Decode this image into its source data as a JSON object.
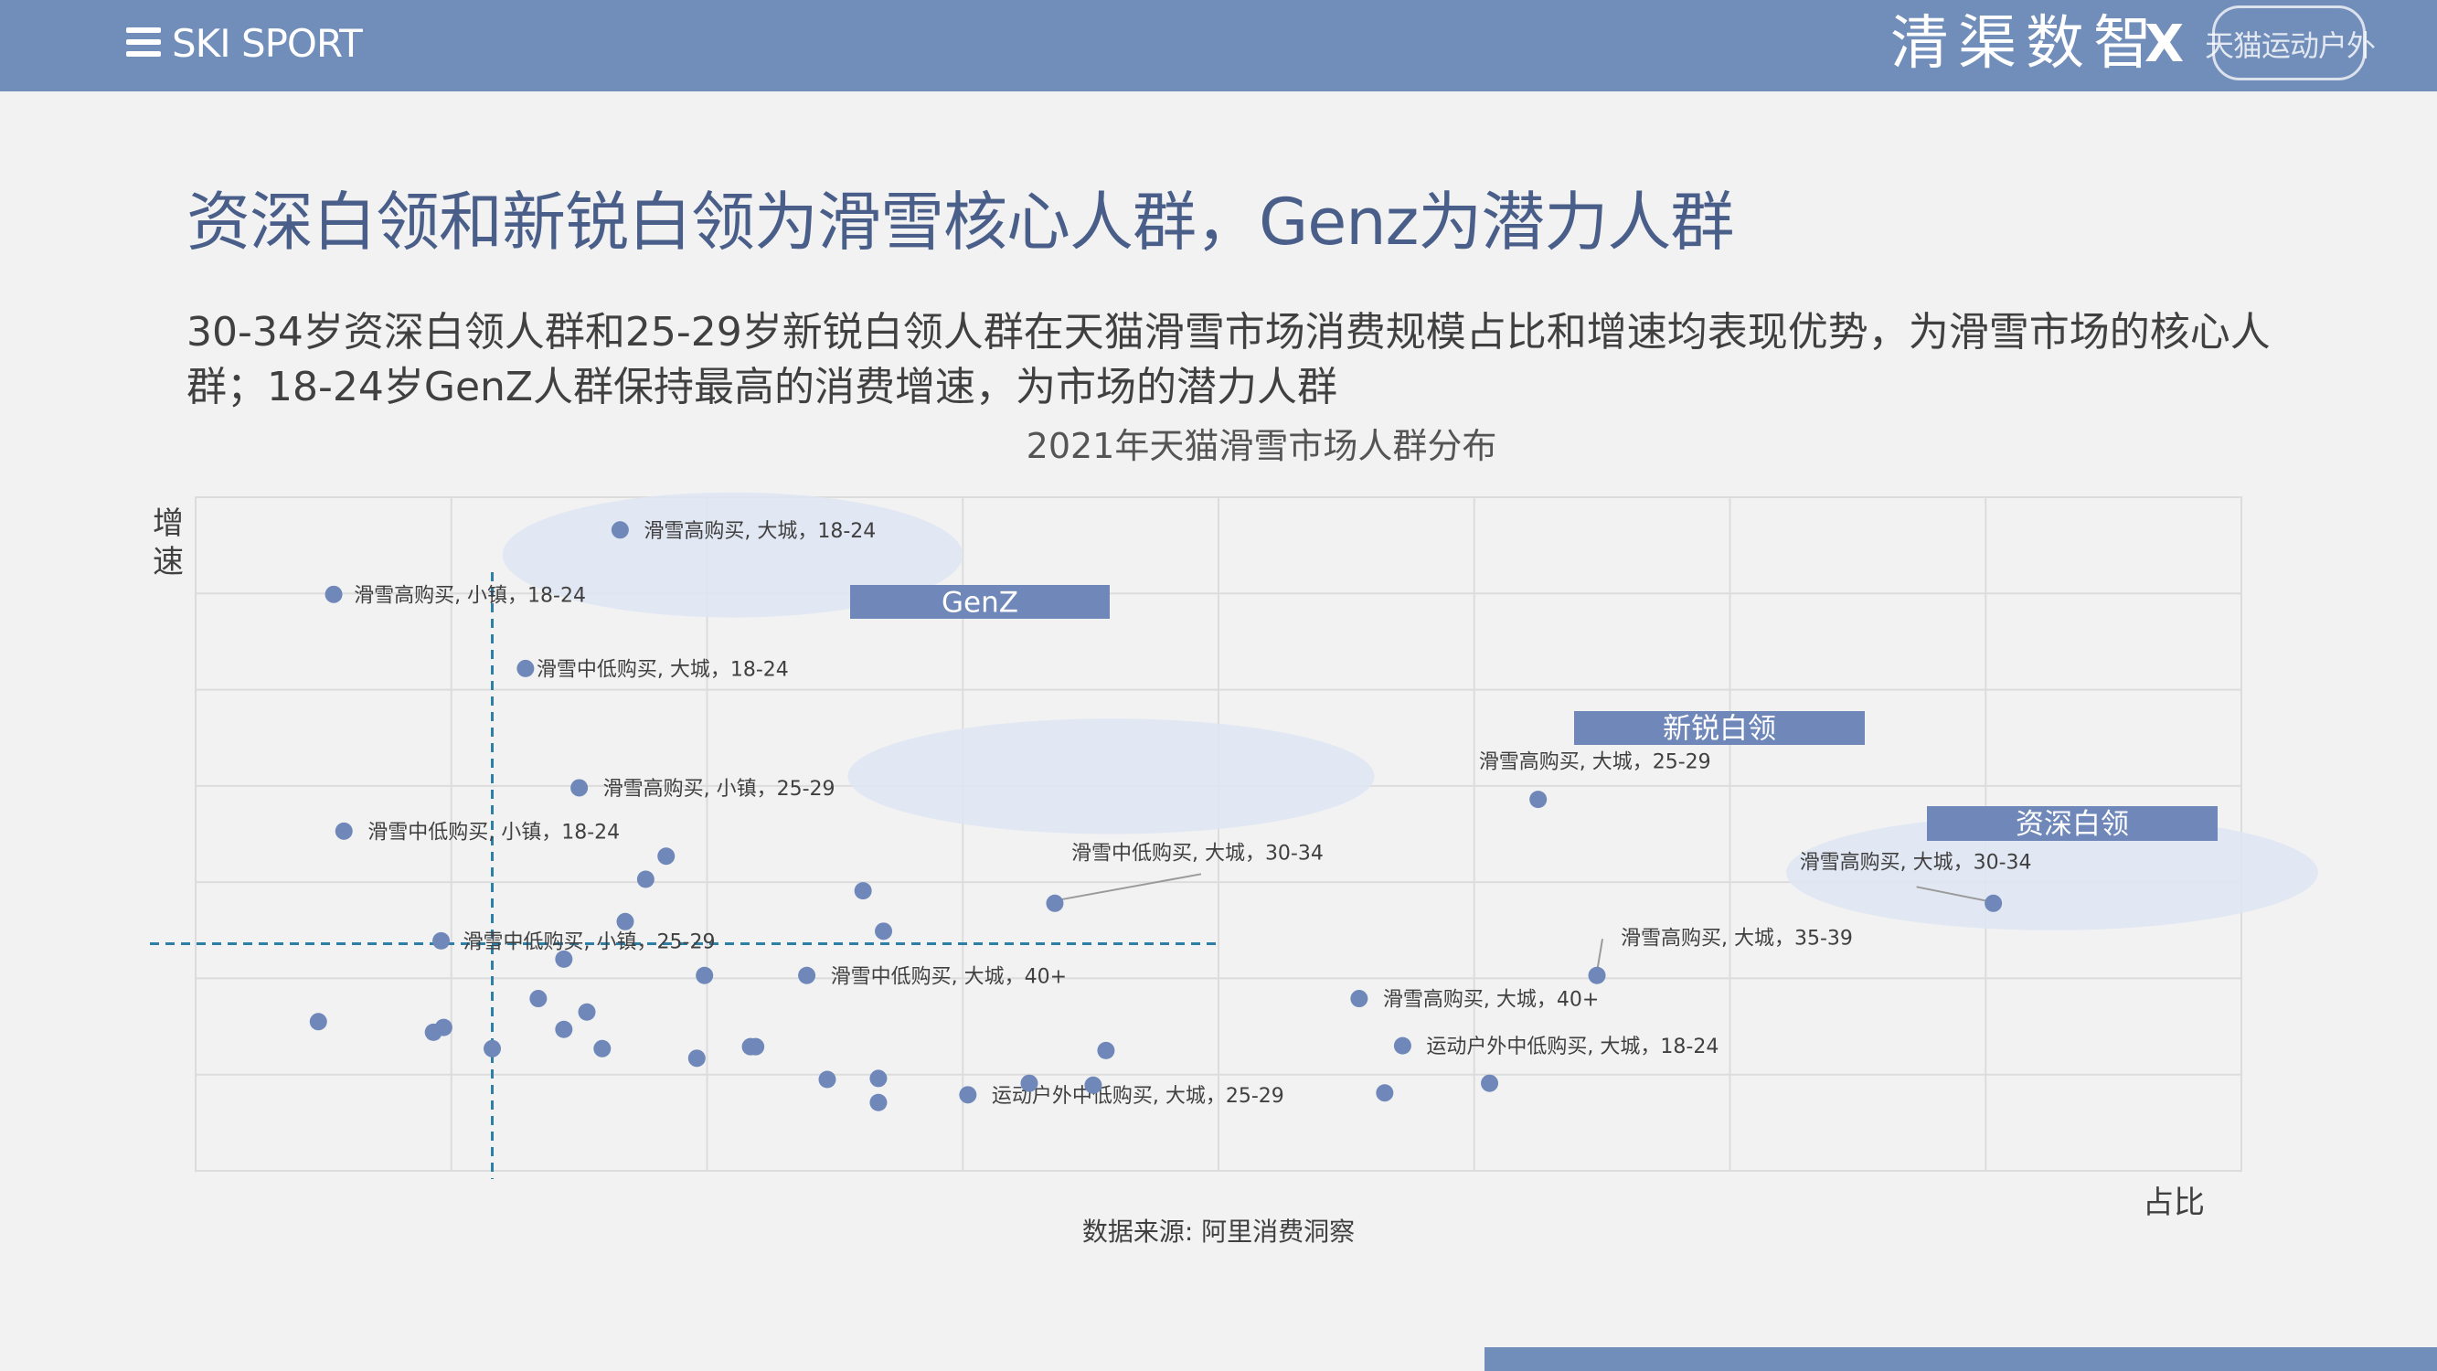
{
  "header": {
    "brand": "SKI SPORT",
    "partner_a": "清渠数智",
    "partner_x": "X",
    "partner_b": "天猫运动户外"
  },
  "page_title": "资深白领和新锐白领为滑雪核心人群，Genz为潜力人群",
  "subtitle": "30-34岁资深白领人群和25-29岁新锐白领人群在天猫滑雪市场消费规模占比和增速均表现优势，为滑雪市场的核心人群；18-24岁GenZ人群保持最高的消费增速，为市场的潜力人群",
  "source": "数据来源: 阿里消费洞察",
  "colors": {
    "header": "#718db9",
    "point": "#6f88b9",
    "box": "#6f88b9",
    "highlight": "#dfe6f3",
    "dashed": "#2e7fa8",
    "grid": "#dcdcdc"
  },
  "chart_data": {
    "type": "scatter",
    "title": "2021年天猫滑雪市场人群分布",
    "xlabel": "占比",
    "ylabel": "增速",
    "xlim": [
      0,
      8
    ],
    "ylim": [
      0,
      7
    ],
    "grid": true,
    "reference_lines": {
      "x": 1.16,
      "y": 2.36
    },
    "clusters": [
      {
        "name": "GenZ",
        "center": [
          2.1,
          6.4
        ],
        "radius": [
          0.9,
          0.65
        ]
      },
      {
        "name": "新锐白领",
        "center": [
          3.58,
          4.1
        ],
        "radius": [
          1.03,
          0.6
        ]
      },
      {
        "name": "资深白领",
        "center": [
          7.26,
          3.1
        ],
        "radius": [
          1.04,
          0.6
        ]
      }
    ],
    "points": [
      {
        "x": 1.66,
        "y": 6.66,
        "label": "滑雪高购买, 大城，18-24"
      },
      {
        "x": 0.54,
        "y": 5.99,
        "label": "滑雪高购买, 小镇，18-24"
      },
      {
        "x": 1.29,
        "y": 5.22,
        "label": "滑雪中低购买, 大城，18-24"
      },
      {
        "x": 1.5,
        "y": 3.98,
        "label": "滑雪高购买, 小镇，25-29"
      },
      {
        "x": 0.58,
        "y": 3.53,
        "label": "滑雪中低购买, 小镇，18-24"
      },
      {
        "x": 5.25,
        "y": 3.86,
        "label": "滑雪高购买, 大城，25-29"
      },
      {
        "x": 7.03,
        "y": 2.78,
        "label": "滑雪高购买, 大城，30-34"
      },
      {
        "x": 3.36,
        "y": 2.78,
        "label": "滑雪中低购买, 大城，30-34"
      },
      {
        "x": 0.96,
        "y": 2.39,
        "label": "滑雪中低购买, 小镇，25-29"
      },
      {
        "x": 2.39,
        "y": 2.03,
        "label": "滑雪中低购买, 大城，40+"
      },
      {
        "x": 5.48,
        "y": 2.03,
        "label": "滑雪高购买, 大城，35-39"
      },
      {
        "x": 4.55,
        "y": 1.79,
        "label": "滑雪高购买, 大城，40+"
      },
      {
        "x": 4.72,
        "y": 1.3,
        "label": "运动户外中低购买, 大城，18-24"
      },
      {
        "x": 3.02,
        "y": 0.79,
        "label": "运动户外中低购买, 大城，25-29"
      },
      {
        "x": 1.84,
        "y": 3.27,
        "label": ""
      },
      {
        "x": 1.76,
        "y": 3.03,
        "label": ""
      },
      {
        "x": 2.61,
        "y": 2.91,
        "label": ""
      },
      {
        "x": 1.68,
        "y": 2.59,
        "label": ""
      },
      {
        "x": 2.69,
        "y": 2.49,
        "label": ""
      },
      {
        "x": 1.44,
        "y": 2.2,
        "label": ""
      },
      {
        "x": 1.99,
        "y": 2.03,
        "label": ""
      },
      {
        "x": 1.34,
        "y": 1.79,
        "label": ""
      },
      {
        "x": 1.53,
        "y": 1.65,
        "label": ""
      },
      {
        "x": 0.48,
        "y": 1.55,
        "label": ""
      },
      {
        "x": 0.97,
        "y": 1.49,
        "label": ""
      },
      {
        "x": 0.93,
        "y": 1.44,
        "label": ""
      },
      {
        "x": 1.44,
        "y": 1.47,
        "label": ""
      },
      {
        "x": 1.16,
        "y": 1.27,
        "label": ""
      },
      {
        "x": 1.59,
        "y": 1.27,
        "label": ""
      },
      {
        "x": 2.19,
        "y": 1.29,
        "label": ""
      },
      {
        "x": 1.96,
        "y": 1.17,
        "label": ""
      },
      {
        "x": 2.17,
        "y": 1.29,
        "label": ""
      },
      {
        "x": 3.56,
        "y": 1.25,
        "label": ""
      },
      {
        "x": 2.47,
        "y": 0.95,
        "label": ""
      },
      {
        "x": 2.67,
        "y": 0.96,
        "label": ""
      },
      {
        "x": 2.67,
        "y": 0.71,
        "label": ""
      },
      {
        "x": 3.26,
        "y": 0.91,
        "label": ""
      },
      {
        "x": 3.51,
        "y": 0.89,
        "label": ""
      },
      {
        "x": 4.65,
        "y": 0.81,
        "label": ""
      },
      {
        "x": 5.06,
        "y": 0.91,
        "label": ""
      }
    ]
  }
}
